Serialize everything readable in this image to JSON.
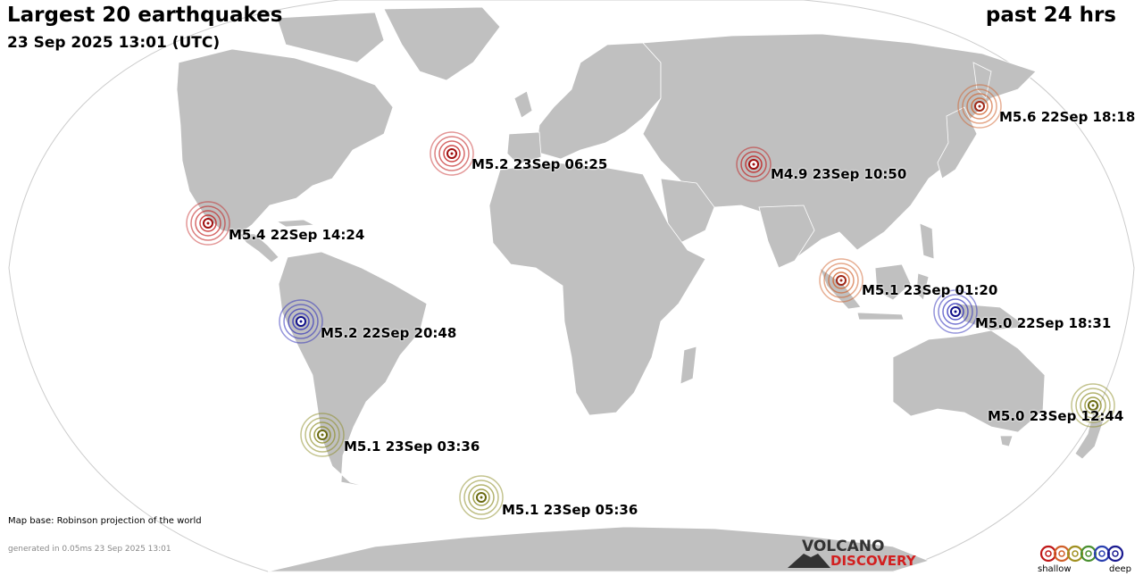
{
  "header": {
    "title": "Largest 20 earthquakes",
    "subtitle": "23 Sep 2025 13:01 (UTC)",
    "period": "past 24 hrs"
  },
  "footer": {
    "map_base": "Map base: Robinson projection of the world",
    "generated": "generated in 0.05ms 23 Sep 2025 13:01"
  },
  "logo": {
    "line1": "VOLCANO",
    "line2": "DISCOVERY"
  },
  "legend": {
    "shallow_label": "shallow",
    "deep_label": "deep",
    "depth_colors": [
      "#c01818",
      "#d0602a",
      "#a09020",
      "#4a9030",
      "#2a40b0",
      "#1a1a90"
    ]
  },
  "colors": {
    "land": "#c0c0c0",
    "ocean": "#ffffff",
    "shallow": "#c01818",
    "intermediate": "#d0602a",
    "mid_deep": "#8a8a20",
    "deep": "#1a1ab0"
  },
  "earthquakes": [
    {
      "label": "M5.6 22Sep 18:18",
      "depth_class": "intermediate"
    },
    {
      "label": "M5.2 23Sep 06:25",
      "depth_class": "shallow"
    },
    {
      "label": "M4.9 23Sep 10:50",
      "depth_class": "shallow"
    },
    {
      "label": "M5.4 22Sep 14:24",
      "depth_class": "shallow"
    },
    {
      "label": "M5.1 23Sep 01:20",
      "depth_class": "intermediate"
    },
    {
      "label": "M5.2 22Sep 20:48",
      "depth_class": "deep"
    },
    {
      "label": "M5.0 22Sep 18:31",
      "depth_class": "deep"
    },
    {
      "label": "M5.0 23Sep 12:44",
      "depth_class": "mid_deep"
    },
    {
      "label": "M5.1 23Sep 03:36",
      "depth_class": "mid_deep"
    },
    {
      "label": "M5.1 23Sep 05:36",
      "depth_class": "mid_deep"
    }
  ]
}
